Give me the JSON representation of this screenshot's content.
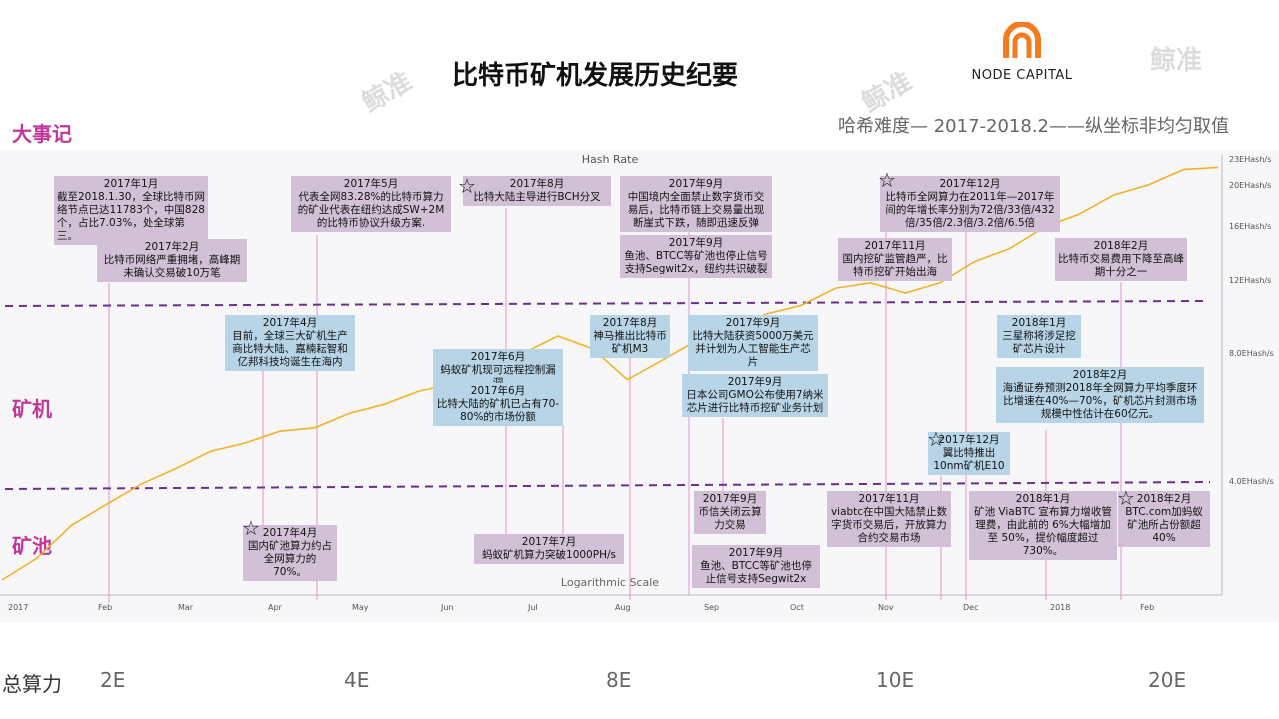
{
  "title": "比特币矿机发展历史纪要",
  "brand": {
    "name": "NODE CAPITAL",
    "watermark": "鲸准",
    "logo_color": "#f47b20"
  },
  "subtitle": "哈希难度— 2017-2018.2——纵坐标非均匀取值",
  "sections": {
    "events": "大事记",
    "miners": "矿机",
    "pools": "矿池"
  },
  "chart_data": {
    "type": "line",
    "title": "Hash Rate",
    "scale_note": "Logarithmic Scale",
    "y_ticks": [
      "23EHash/s",
      "20EHash/s",
      "16EHash/s",
      "12EHash/s",
      "8.0EHash/s",
      "4.0EHash/s"
    ],
    "x_ticks": [
      "2017",
      "Feb",
      "Mar",
      "Apr",
      "May",
      "Jun",
      "Jul",
      "Aug",
      "Sep",
      "Oct",
      "Nov",
      "Dec",
      "2018",
      "Feb"
    ],
    "series": [
      {
        "values": [
          1.8,
          2.1,
          2.5,
          2.9,
          3.2,
          3.6,
          3.9,
          4.2,
          4.4,
          4.6,
          4.9,
          5.3,
          5.6,
          6.0,
          6.6,
          7.2,
          7.8,
          7.4,
          6.0,
          6.9,
          7.6,
          8.3,
          8.9,
          9.6,
          10.4,
          11.0,
          10.1,
          11.0,
          12.2,
          13.5,
          15.0,
          16.6,
          18.2,
          19.8,
          21.2,
          22.0
        ]
      }
    ],
    "line_color": "#f2b32a"
  },
  "annotations": [
    {
      "date": "2017年1月",
      "text": "截至2018.1.30，全球比特币网络节点已达11783个，中国828个，占比7.03%，处全球第三。"
    },
    {
      "date": "2017年2月",
      "text": "比特币网络严重拥堵，高峰期未确认交易破10万笔"
    },
    {
      "date": "2017年5月",
      "text": "代表全网83.28%的比特币算力的矿业代表在纽约达成SW+2M的比特币协议升级方案."
    },
    {
      "date": "2017年8月",
      "text": "比特大陆主导进行BCH分叉"
    },
    {
      "date": "2017年9月",
      "text": "中国境内全面禁止数字货币交易后，比特币链上交易量出现断崖式下跌，随即迅速反弹"
    },
    {
      "date": "2017年9月",
      "text": "鱼池、BTCC等矿池也停止信号支持Segwit2x，纽约共识破裂"
    },
    {
      "date": "2017年12月",
      "text": "比特币全网算力在2011年—2017年间的年增长率分别为72倍/33倍/432倍/35倍/2.3倍/3.2倍/6.5倍"
    },
    {
      "date": "2017年11月",
      "text": "国内挖矿监管趋严，比特币挖矿开始出海"
    },
    {
      "date": "2018年2月",
      "text": "比特币交易费用下降至高峰期十分之一"
    },
    {
      "date": "2017年4月",
      "text": "目前，全球三大矿机生产商比特大陆、嘉楠耘智和亿邦科技均诞生在海内"
    },
    {
      "date": "2017年6月",
      "text": "蚂蚁矿机现可远程控制漏洞"
    },
    {
      "date": "2017年6月",
      "text": "比特大陆的矿机已占有70-80%的市场份额"
    },
    {
      "date": "2017年8月",
      "text": "神马推出比特币矿机M3"
    },
    {
      "date": "2017年9月",
      "text": "比特大陆获资5000万美元并计划为人工智能生产芯片"
    },
    {
      "date": "2017年9月",
      "text": "日本公司GMO公布使用7纳米芯片进行比特币挖矿业务计划"
    },
    {
      "date": "2018年1月",
      "text": "三星称将涉足挖矿芯片设计"
    },
    {
      "date": "2018年2月",
      "text": "海通证券预测2018年全网算力平均季度环比增速在40%—70%，矿机芯片封测市场规模中性估计在60亿元。"
    },
    {
      "date": "2017年12月",
      "text": "翼比特推出10nm矿机E10"
    },
    {
      "date": "2017年4月",
      "text": "国内矿池算力约占全网算力的 70%。"
    },
    {
      "date": "2017年7月",
      "text": "蚂蚁矿机算力突破1000PH/s"
    },
    {
      "date": "2017年9月",
      "text": "币信关闭云算力交易"
    },
    {
      "date": "2017年9月",
      "text": "鱼池、BTCC等矿池也停止信号支持Segwit2x"
    },
    {
      "date": "2017年11月",
      "text": "viabtc在中国大陆禁止数字货币交易后，开放算力合约交易市场"
    },
    {
      "date": "2018年1月",
      "text": "矿池 ViaBTC 宣布算力增收管理费，由此前的 6%大幅增加至 50%，提价幅度超过 730%。"
    },
    {
      "date": "2018年2月",
      "text": "BTC.com加蚂蚁矿池所占份额超40%"
    }
  ],
  "total_hashrate": {
    "label": "总算力",
    "values": [
      "2E",
      "4E",
      "8E",
      "10E",
      "20E"
    ]
  }
}
